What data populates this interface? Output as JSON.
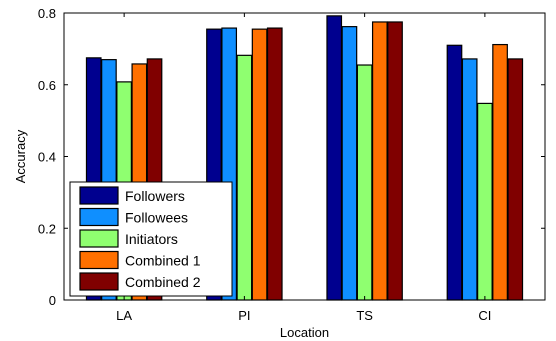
{
  "chart_data": {
    "type": "bar",
    "title": "",
    "xlabel": "Location",
    "ylabel": "Accuracy",
    "categories": [
      "LA",
      "PI",
      "TS",
      "CI"
    ],
    "ylim": [
      0,
      0.8
    ],
    "yticks": [
      "0",
      "0.2",
      "0.4",
      "0.6",
      "0.8"
    ],
    "grid": false,
    "legend_position": "bottom-left",
    "series": [
      {
        "name": "Followers",
        "color": "#00008f",
        "values": [
          0.675,
          0.755,
          0.792,
          0.71
        ]
      },
      {
        "name": "Followees",
        "color": "#0f8fff",
        "values": [
          0.67,
          0.758,
          0.762,
          0.672
        ]
      },
      {
        "name": "Initiators",
        "color": "#8fff70",
        "values": [
          0.608,
          0.682,
          0.655,
          0.548
        ]
      },
      {
        "name": "Combined 1",
        "color": "#ff7000",
        "values": [
          0.658,
          0.755,
          0.775,
          0.712
        ]
      },
      {
        "name": "Combined 2",
        "color": "#800000",
        "values": [
          0.672,
          0.758,
          0.775,
          0.672
        ]
      }
    ]
  }
}
